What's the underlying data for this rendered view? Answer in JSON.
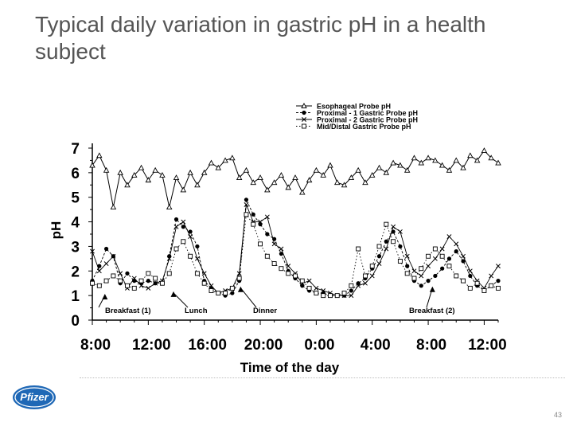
{
  "slide": {
    "title": "Typical daily variation in gastric pH in a health subject",
    "page_number": "43",
    "logo_text": "Pfizer"
  },
  "chart_data": {
    "type": "line",
    "xlabel": "Time of the day",
    "ylabel": "pH",
    "ylim": [
      0,
      7
    ],
    "x_ticks": [
      "8:00",
      "12:00",
      "16:00",
      "20:00",
      "0:00",
      "4:00",
      "8:00",
      "12:00"
    ],
    "y_ticks": [
      "0",
      "1",
      "2",
      "3",
      "4",
      "5",
      "6",
      "7"
    ],
    "xlim_hours": [
      0,
      29
    ],
    "legend_position": "top-right",
    "annotations": [
      {
        "text": "Breakfast (1)",
        "x": 0.3
      },
      {
        "text": "Lunch",
        "x": 5.8
      },
      {
        "text": "Dinner",
        "x": 10.7
      },
      {
        "text": "Breakfast (2)",
        "x": 24.2
      }
    ],
    "series": [
      {
        "name": "Esophageal Probe pH",
        "marker": "triangle",
        "x": [
          0,
          0.5,
          1,
          1.5,
          2,
          2.5,
          3,
          3.5,
          4,
          4.5,
          5,
          5.5,
          6,
          6.5,
          7,
          7.5,
          8,
          8.5,
          9,
          9.5,
          10,
          10.5,
          11,
          11.5,
          12,
          12.5,
          13,
          13.5,
          14,
          14.5,
          15,
          15.5,
          16,
          16.5,
          17,
          17.5,
          18,
          18.5,
          19,
          19.5,
          20,
          20.5,
          21,
          21.5,
          22,
          22.5,
          23,
          23.5,
          24,
          24.5,
          25,
          25.5,
          26,
          26.5,
          27,
          27.5,
          28,
          28.5,
          29
        ],
        "values": [
          6.3,
          6.7,
          6.1,
          4.6,
          6.0,
          5.5,
          5.9,
          6.2,
          5.7,
          6.1,
          5.9,
          4.6,
          5.8,
          5.3,
          6.0,
          5.5,
          6.0,
          6.4,
          6.2,
          6.5,
          6.6,
          5.8,
          6.1,
          5.6,
          5.8,
          5.3,
          5.6,
          5.9,
          5.4,
          5.8,
          5.2,
          5.7,
          6.1,
          5.9,
          6.3,
          5.6,
          5.5,
          5.8,
          6.1,
          5.6,
          5.9,
          6.2,
          6.0,
          6.4,
          6.3,
          6.1,
          6.6,
          6.4,
          6.6,
          6.5,
          6.3,
          6.1,
          6.5,
          6.2,
          6.7,
          6.5,
          6.9,
          6.6,
          6.4
        ]
      },
      {
        "name": "Proximal - 1 Gastric Probe pH",
        "marker": "circle",
        "x": [
          0,
          0.5,
          1,
          1.5,
          2,
          2.5,
          3,
          3.5,
          4,
          4.5,
          5,
          5.5,
          6,
          6.5,
          7,
          7.5,
          8,
          8.5,
          9,
          9.5,
          10,
          10.5,
          11,
          11.5,
          12,
          12.5,
          13,
          13.5,
          14,
          14.5,
          15,
          15.5,
          16,
          16.5,
          17,
          17.5,
          18,
          18.5,
          19,
          19.5,
          20,
          20.5,
          21,
          21.5,
          22,
          22.5,
          23,
          23.5,
          24,
          24.5,
          25,
          25.5,
          26,
          26.5,
          27,
          27.5,
          28,
          28.5,
          29
        ],
        "values": [
          1.6,
          2.2,
          2.9,
          2.6,
          1.5,
          1.9,
          1.6,
          1.5,
          1.6,
          1.5,
          1.5,
          2.6,
          4.1,
          3.8,
          3.6,
          3.0,
          1.6,
          1.3,
          1.1,
          1.0,
          1.1,
          1.6,
          4.9,
          4.3,
          3.9,
          3.5,
          3.3,
          2.7,
          2.0,
          1.7,
          1.4,
          1.2,
          1.1,
          1.1,
          1.0,
          1.0,
          1.0,
          1.2,
          1.5,
          1.7,
          2.1,
          2.6,
          3.2,
          3.6,
          3.0,
          2.2,
          1.6,
          1.4,
          1.6,
          1.8,
          2.1,
          2.5,
          2.8,
          2.4,
          1.8,
          1.4,
          1.2,
          1.4,
          1.6
        ]
      },
      {
        "name": "Proximal - 2 Gastric Probe pH",
        "marker": "x",
        "x": [
          0,
          0.5,
          1,
          1.5,
          2,
          2.5,
          3,
          3.5,
          4,
          4.5,
          5,
          5.5,
          6,
          6.5,
          7,
          7.5,
          8,
          8.5,
          9,
          9.5,
          10,
          10.5,
          11,
          11.5,
          12,
          12.5,
          13,
          13.5,
          14,
          14.5,
          15,
          15.5,
          16,
          16.5,
          17,
          17.5,
          18,
          18.5,
          19,
          19.5,
          20,
          20.5,
          21,
          21.5,
          22,
          22.5,
          23,
          23.5,
          24,
          24.5,
          25,
          25.5,
          26,
          26.5,
          27,
          27.5,
          28,
          28.5,
          29
        ],
        "values": [
          2.8,
          2.0,
          2.3,
          2.6,
          1.9,
          1.3,
          1.7,
          1.4,
          1.3,
          1.5,
          1.6,
          2.5,
          3.8,
          4.0,
          3.4,
          2.5,
          1.9,
          1.4,
          1.1,
          1.2,
          1.3,
          1.9,
          4.7,
          4.0,
          4.0,
          4.2,
          3.1,
          2.9,
          2.2,
          1.9,
          1.5,
          1.6,
          1.3,
          1.2,
          1.1,
          1.0,
          1.0,
          1.0,
          1.4,
          1.5,
          1.8,
          2.3,
          2.9,
          3.8,
          3.6,
          2.6,
          2.0,
          1.8,
          2.2,
          2.5,
          2.9,
          3.4,
          3.1,
          2.6,
          2.0,
          1.6,
          1.3,
          1.8,
          2.2
        ]
      },
      {
        "name": "Mid/Distal Gastric Probe pH",
        "marker": "square",
        "x": [
          0,
          0.5,
          1,
          1.5,
          2,
          2.5,
          3,
          3.5,
          4,
          4.5,
          5,
          5.5,
          6,
          6.5,
          7,
          7.5,
          8,
          8.5,
          9,
          9.5,
          10,
          10.5,
          11,
          11.5,
          12,
          12.5,
          13,
          13.5,
          14,
          14.5,
          15,
          15.5,
          16,
          16.5,
          17,
          17.5,
          18,
          18.5,
          19,
          19.5,
          20,
          20.5,
          21,
          21.5,
          22,
          22.5,
          23,
          23.5,
          24,
          24.5,
          25,
          25.5,
          26,
          26.5,
          27,
          27.5,
          28,
          28.5,
          29
        ],
        "values": [
          1.5,
          1.4,
          1.6,
          1.8,
          1.6,
          1.4,
          1.3,
          1.6,
          1.9,
          1.7,
          1.5,
          1.9,
          2.9,
          3.2,
          2.6,
          1.9,
          1.5,
          1.2,
          1.1,
          1.1,
          1.3,
          1.7,
          4.3,
          3.9,
          3.1,
          2.6,
          2.3,
          2.1,
          1.9,
          1.8,
          1.6,
          1.3,
          1.1,
          1.0,
          1.0,
          1.0,
          1.1,
          1.4,
          2.9,
          1.8,
          2.2,
          3.0,
          3.9,
          3.2,
          2.4,
          1.9,
          1.7,
          2.1,
          2.6,
          2.9,
          2.6,
          2.2,
          1.8,
          1.6,
          1.3,
          1.5,
          1.2,
          1.4,
          1.3
        ]
      }
    ]
  }
}
